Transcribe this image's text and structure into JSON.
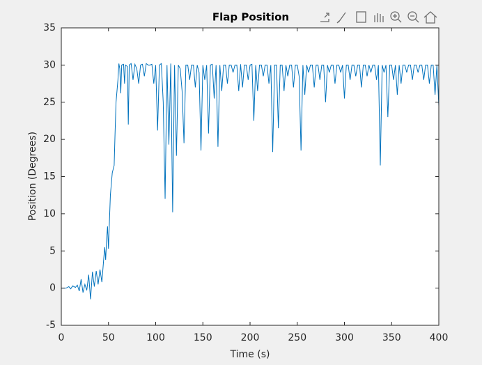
{
  "chart_data": {
    "type": "line",
    "title": "Flap Position",
    "xlabel": "Time (s)",
    "ylabel": "Position (Degrees)",
    "color": "#0072bd",
    "x": [
      0,
      5,
      8,
      10,
      12,
      15,
      17,
      19,
      21,
      23,
      25,
      27,
      29,
      31,
      33,
      35,
      37,
      39,
      41,
      43,
      45,
      46,
      47,
      48,
      49,
      50,
      51,
      52,
      54,
      56,
      57,
      58,
      60,
      61,
      62,
      63,
      64,
      66,
      67,
      68,
      70,
      71,
      72,
      74,
      76,
      78,
      80,
      82,
      84,
      86,
      88,
      90,
      92,
      94,
      96,
      98,
      100,
      102,
      104,
      106,
      108,
      110,
      112,
      114,
      116,
      118,
      120,
      122,
      124,
      126,
      128,
      130,
      132,
      134,
      136,
      138,
      140,
      142,
      144,
      146,
      148,
      150,
      152,
      154,
      156,
      158,
      160,
      162,
      164,
      166,
      168,
      170,
      172,
      174,
      176,
      178,
      180,
      182,
      184,
      186,
      188,
      190,
      192,
      194,
      196,
      198,
      200,
      202,
      204,
      206,
      208,
      210,
      212,
      214,
      216,
      218,
      220,
      222,
      224,
      226,
      228,
      230,
      232,
      234,
      236,
      238,
      240,
      242,
      244,
      246,
      248,
      250,
      252,
      254,
      256,
      258,
      260,
      262,
      264,
      266,
      268,
      270,
      272,
      274,
      276,
      278,
      280,
      282,
      284,
      286,
      288,
      290,
      292,
      294,
      296,
      298,
      300,
      302,
      304,
      306,
      308,
      310,
      312,
      314,
      316,
      318,
      320,
      322,
      324,
      326,
      328,
      330,
      332,
      334,
      336,
      338,
      340,
      342,
      344,
      346,
      348,
      350,
      352,
      354,
      356,
      358,
      360,
      362,
      364,
      366,
      368,
      370,
      372,
      374,
      376,
      378,
      380,
      382,
      384,
      386,
      388,
      390,
      392,
      394,
      396,
      398,
      400
    ],
    "values": [
      0,
      0,
      0.2,
      -0.1,
      0.3,
      0.1,
      0.4,
      -0.4,
      1.2,
      -0.6,
      0.5,
      -0.3,
      1.8,
      -1.5,
      2.2,
      0.2,
      2.3,
      0.5,
      2.5,
      0.8,
      4.0,
      5.5,
      3.8,
      6.5,
      8.3,
      5.3,
      9,
      12.5,
      15.5,
      16.5,
      21,
      25,
      28,
      30.2,
      29.5,
      26.2,
      30,
      30.1,
      27.5,
      30,
      29.8,
      22,
      30,
      30.2,
      28,
      30.1,
      29.5,
      27.5,
      30,
      30.1,
      28.5,
      30.2,
      30,
      30,
      30.1,
      27.5,
      30,
      21.2,
      30,
      30.2,
      25,
      12,
      30,
      19.3,
      30.2,
      10.2,
      30,
      17.8,
      30,
      29.5,
      26.5,
      19.5,
      30,
      30,
      28,
      30,
      30,
      27,
      30,
      29,
      18.5,
      30,
      28,
      30,
      20.8,
      30,
      30.1,
      25.5,
      30,
      19,
      30,
      26.5,
      30,
      30,
      27.5,
      30,
      30,
      29,
      30,
      30,
      26.5,
      30.1,
      27,
      30,
      30,
      28,
      30,
      30.1,
      22.5,
      30,
      26.5,
      30,
      30,
      28.5,
      30,
      30,
      27.5,
      30,
      18.3,
      30,
      30,
      21.5,
      30,
      30,
      26.5,
      30,
      28.5,
      30,
      30,
      27,
      30,
      30,
      28.5,
      18.5,
      30,
      26,
      30,
      29,
      30,
      30,
      27,
      30,
      30,
      28,
      30,
      30,
      25,
      30,
      29,
      30,
      30,
      27.5,
      30,
      30,
      29,
      30,
      25.5,
      30,
      30,
      28,
      30,
      30,
      28.5,
      30,
      30,
      27,
      30,
      30,
      28.5,
      30,
      29,
      30,
      30,
      28,
      30,
      16.5,
      30,
      29,
      30,
      23,
      30,
      30,
      28,
      30,
      26,
      30,
      27.5,
      30,
      30,
      29,
      30,
      30,
      28,
      30,
      30,
      29,
      30,
      30,
      28,
      30,
      30,
      27.5,
      30,
      30,
      26,
      30,
      24.5
    ],
    "xlim": [
      0,
      400
    ],
    "xticks": [
      0,
      50,
      100,
      150,
      200,
      250,
      300,
      350,
      400
    ],
    "ylim": [
      -5,
      35
    ],
    "yticks": [
      -5,
      0,
      5,
      10,
      15,
      20,
      25,
      30,
      35
    ]
  }
}
